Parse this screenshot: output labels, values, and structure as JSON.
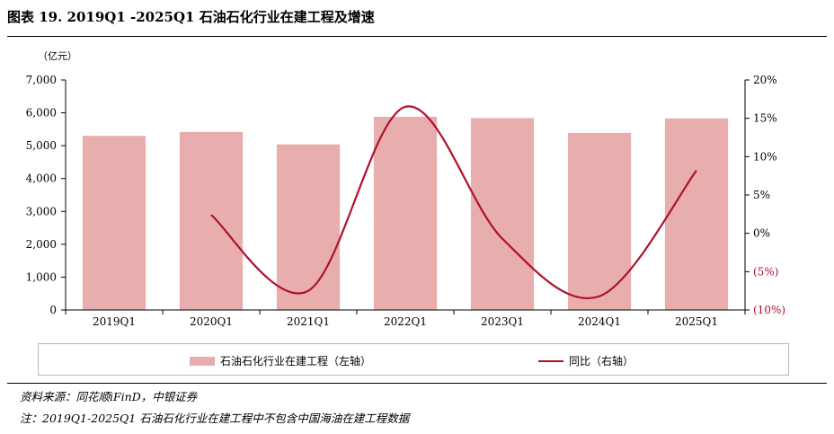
{
  "title": "图表 19. 2019Q1 -2025Q1 石油石化行业在建工程及增速",
  "footnotes": {
    "source": "资料来源：同花顺iFinD，中银证券",
    "note": "注：2019Q1-2025Q1 石油石化行业在建工程中不包含中国海油在建工程数据"
  },
  "colors": {
    "bar": "#e8aeae",
    "line": "#b0102a",
    "axis": "#000000",
    "right_tick": "#b0102a"
  },
  "chart_data": {
    "type": "bar",
    "categories": [
      "2019Q1",
      "2020Q1",
      "2021Q1",
      "2022Q1",
      "2023Q1",
      "2024Q1",
      "2025Q1"
    ],
    "ylabel": "（亿元）",
    "ylim": [
      0,
      7000
    ],
    "yticks": [
      0,
      1000,
      2000,
      3000,
      4000,
      5000,
      6000,
      7000
    ],
    "ytick_labels": [
      "0",
      "1,000",
      "2,000",
      "3,000",
      "4,000",
      "5,000",
      "6,000",
      "7,000"
    ],
    "y2lim": [
      -10,
      20
    ],
    "y2ticks": [
      -10,
      -5,
      0,
      5,
      10,
      15,
      20
    ],
    "y2tick_labels": [
      "(10%)",
      "(5%)",
      "0%",
      "5%",
      "10%",
      "15%",
      "20%"
    ],
    "grid": false,
    "legend_position": "bottom",
    "series": [
      {
        "name": "石油石化行业在建工程（左轴）",
        "type": "bar",
        "axis": "left",
        "values": [
          5300,
          5420,
          5040,
          5880,
          5840,
          5390,
          5830
        ]
      },
      {
        "name": "同比（右轴）",
        "type": "line",
        "axis": "right",
        "smooth": true,
        "values": [
          null,
          2.4,
          -7.5,
          16.5,
          -0.7,
          -8.2,
          8.2
        ]
      }
    ]
  }
}
